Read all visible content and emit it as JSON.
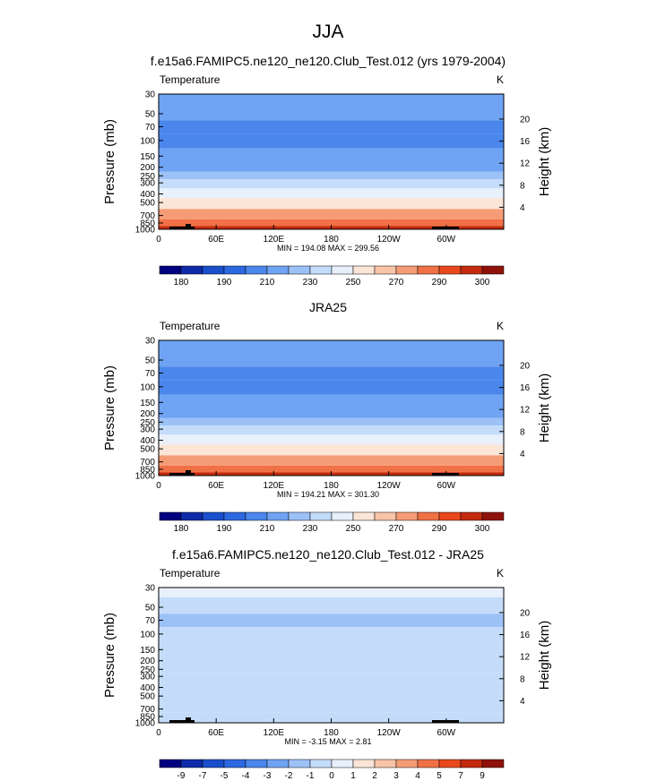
{
  "figure": {
    "season": "JJA"
  },
  "colors": {
    "temperature_scale": [
      "#000080",
      "#0d2aa8",
      "#1a4fcc",
      "#2c68e0",
      "#4a86ec",
      "#6fa3f3",
      "#9cc1f7",
      "#c4dcfa",
      "#e8f0fb",
      "#fbe5d6",
      "#f8c4a8",
      "#f59c76",
      "#f17146",
      "#e8481c",
      "#c42a0e",
      "#8e120a"
    ],
    "difference_scale": [
      "#000080",
      "#0d2aa8",
      "#1a4fcc",
      "#2c68e0",
      "#4a86ec",
      "#6fa3f3",
      "#9cc1f7",
      "#c4dcfa",
      "#e8f0fb",
      "#fbe5d6",
      "#f8c4a8",
      "#f59c76",
      "#f17146",
      "#e8481c",
      "#c42a0e",
      "#8e120a"
    ],
    "topography": "#000000"
  },
  "chart_data": [
    {
      "type": "heatmap",
      "title": "f.e15a6.FAMIPC5.ne120_ne120.Club_Test.012 (yrs 1979-2004)",
      "variable": "Temperature",
      "units": "K",
      "ylabel": "Pressure (mb)",
      "ylabel_right": "Height (km)",
      "y_log_scale": true,
      "ylim": [
        1000,
        30
      ],
      "yticks": [
        30,
        50,
        70,
        100,
        150,
        200,
        250,
        300,
        400,
        500,
        700,
        850,
        1000
      ],
      "yticks_right": [
        "20",
        "16",
        "12",
        "8",
        "4"
      ],
      "xticks": [
        "0",
        "60E",
        "120E",
        "180",
        "120W",
        "60W"
      ],
      "min_max_label": "MIN = 194.08  MAX = 299.56",
      "colorbar_labels": [
        "180",
        "190",
        "210",
        "230",
        "250",
        "270",
        "290",
        "300"
      ],
      "pressure_levels": [
        30,
        50,
        70,
        100,
        150,
        200,
        250,
        300,
        400,
        500,
        700,
        850,
        1000
      ],
      "zonal_mean_profile_K": [
        218,
        212,
        206,
        200,
        210,
        218,
        225,
        230,
        245,
        255,
        270,
        282,
        295
      ]
    },
    {
      "type": "heatmap",
      "title": "JRA25",
      "variable": "Temperature",
      "units": "K",
      "ylabel": "Pressure (mb)",
      "ylabel_right": "Height (km)",
      "y_log_scale": true,
      "ylim": [
        1000,
        30
      ],
      "yticks": [
        30,
        50,
        70,
        100,
        150,
        200,
        250,
        300,
        400,
        500,
        700,
        850,
        1000
      ],
      "yticks_right": [
        "20",
        "16",
        "12",
        "8",
        "4"
      ],
      "xticks": [
        "0",
        "60E",
        "120E",
        "180",
        "120W",
        "60W"
      ],
      "min_max_label": "MIN = 194.21  MAX = 301.30",
      "colorbar_labels": [
        "180",
        "190",
        "210",
        "230",
        "250",
        "270",
        "290",
        "300"
      ],
      "pressure_levels": [
        30,
        50,
        70,
        100,
        150,
        200,
        250,
        300,
        400,
        500,
        700,
        850,
        1000
      ],
      "zonal_mean_profile_K": [
        218,
        212,
        206,
        200,
        210,
        218,
        225,
        231,
        246,
        256,
        271,
        283,
        296
      ]
    },
    {
      "type": "heatmap",
      "title": "f.e15a6.FAMIPC5.ne120_ne120.Club_Test.012 - JRA25",
      "variable": "Temperature",
      "units": "K",
      "ylabel": "Pressure (mb)",
      "ylabel_right": "Height (km)",
      "y_log_scale": true,
      "ylim": [
        1000,
        30
      ],
      "yticks": [
        30,
        50,
        70,
        100,
        150,
        200,
        250,
        300,
        400,
        500,
        700,
        850,
        1000
      ],
      "yticks_right": [
        "20",
        "16",
        "12",
        "8",
        "4"
      ],
      "xticks": [
        "0",
        "60E",
        "120E",
        "180",
        "120W",
        "60W"
      ],
      "min_max_label": "MIN = -3.15  MAX =  2.81",
      "colorbar_labels": [
        "-9",
        "-7",
        "-5",
        "-4",
        "-3",
        "-2",
        "-1",
        "0",
        "1",
        "2",
        "3",
        "4",
        "5",
        "7",
        "9"
      ],
      "pressure_levels": [
        30,
        50,
        70,
        100,
        150,
        200,
        250,
        300,
        400,
        500,
        700,
        850,
        1000
      ],
      "zonal_mean_difference_K": [
        0.3,
        -0.6,
        -1.6,
        -0.4,
        -0.3,
        -0.8,
        -0.5,
        -0.6,
        -0.4,
        -0.5,
        -0.6,
        -0.4,
        -0.3
      ]
    }
  ]
}
